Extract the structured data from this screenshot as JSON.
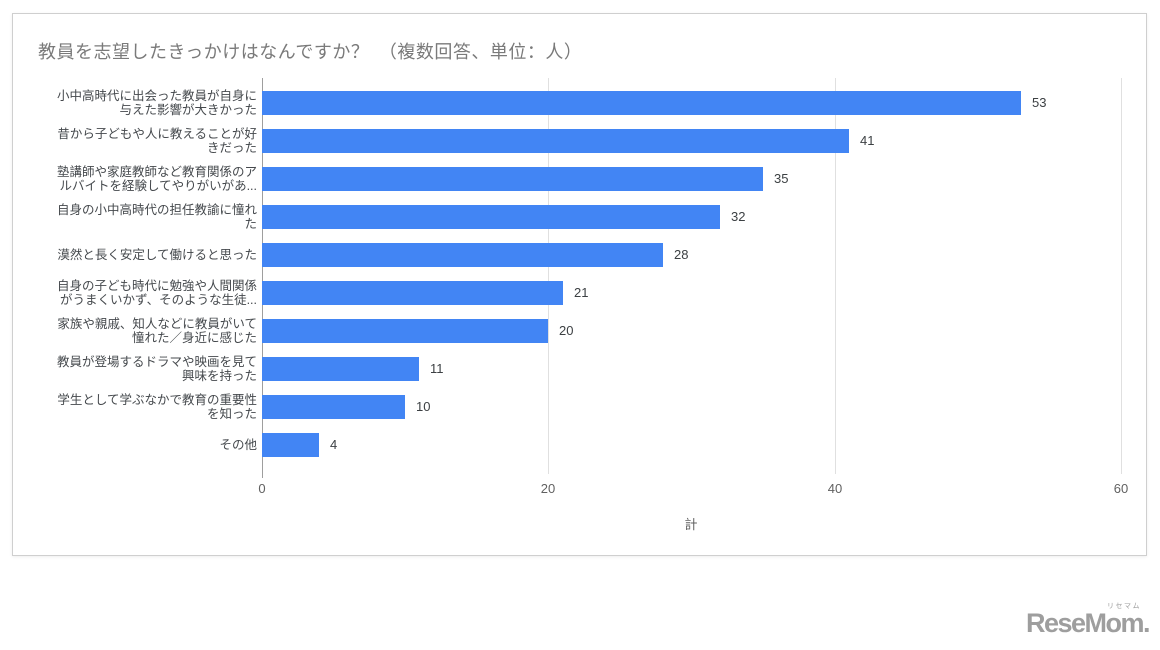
{
  "chart_card": {
    "note": "single white card containing one horizontal bar chart"
  },
  "chart_data": {
    "type": "bar",
    "orientation": "horizontal",
    "title": "教員を志望したきっかけはなんですか？　（複数回答、単位：人）",
    "categories": [
      "小中高時代に出会った教員が自身に与えた影響が大きかった",
      "昔から子どもや人に教えることが好きだった",
      "塾講師や家庭教師など教育関係のアルバイトを経験してやりがいがあ...",
      "自身の小中高時代の担任教諭に憧れた",
      "漠然と長く安定して働けると思った",
      "自身の子ども時代に勉強や人間関係がうまくいかず、そのような生徒...",
      "家族や親戚、知人などに教員がいて憧れた／身近に感じた",
      "教員が登場するドラマや映画を見て興味を持った",
      "学生として学ぶなかで教育の重要性を知った",
      "その他"
    ],
    "category_display_lines": [
      [
        "小中高時代に出会った教員が自身に",
        "与えた影響が大きかった"
      ],
      [
        "昔から子どもや人に教えることが好",
        "きだった"
      ],
      [
        "塾講師や家庭教師など教育関係のア",
        "ルバイトを経験してやりがいがあ..."
      ],
      [
        "自身の小中高時代の担任教諭に憧れ",
        "た"
      ],
      [
        "漠然と長く安定して働けると思った"
      ],
      [
        "自身の子ども時代に勉強や人間関係",
        "がうまくいかず、そのような生徒..."
      ],
      [
        "家族や親戚、知人などに教員がいて",
        "憧れた／身近に感じた"
      ],
      [
        "教員が登場するドラマや映画を見て",
        "興味を持った"
      ],
      [
        "学生として学ぶなかで教育の重要性",
        "を知った"
      ],
      [
        "その他"
      ]
    ],
    "values": [
      53,
      41,
      35,
      32,
      28,
      21,
      20,
      11,
      10,
      4
    ],
    "value_labels": true,
    "xlabel": "計",
    "xlim": [
      0,
      60
    ],
    "xticks": [
      0,
      20,
      40,
      60
    ],
    "grid": true,
    "legend": "none"
  },
  "footer": {
    "logo_text": "ReseMom.",
    "logo_ruby": "リセマム"
  },
  "colors": {
    "bar": "#4285f4",
    "gridline": "#e0e0e0",
    "baseline": "#9e9e9e",
    "title": "#7a7a7a",
    "category_label": "#45494d",
    "value_label": "#3c4043",
    "tick_label": "#616161",
    "card_border": "#cfcfcf",
    "logo": "#9e9e9e"
  }
}
